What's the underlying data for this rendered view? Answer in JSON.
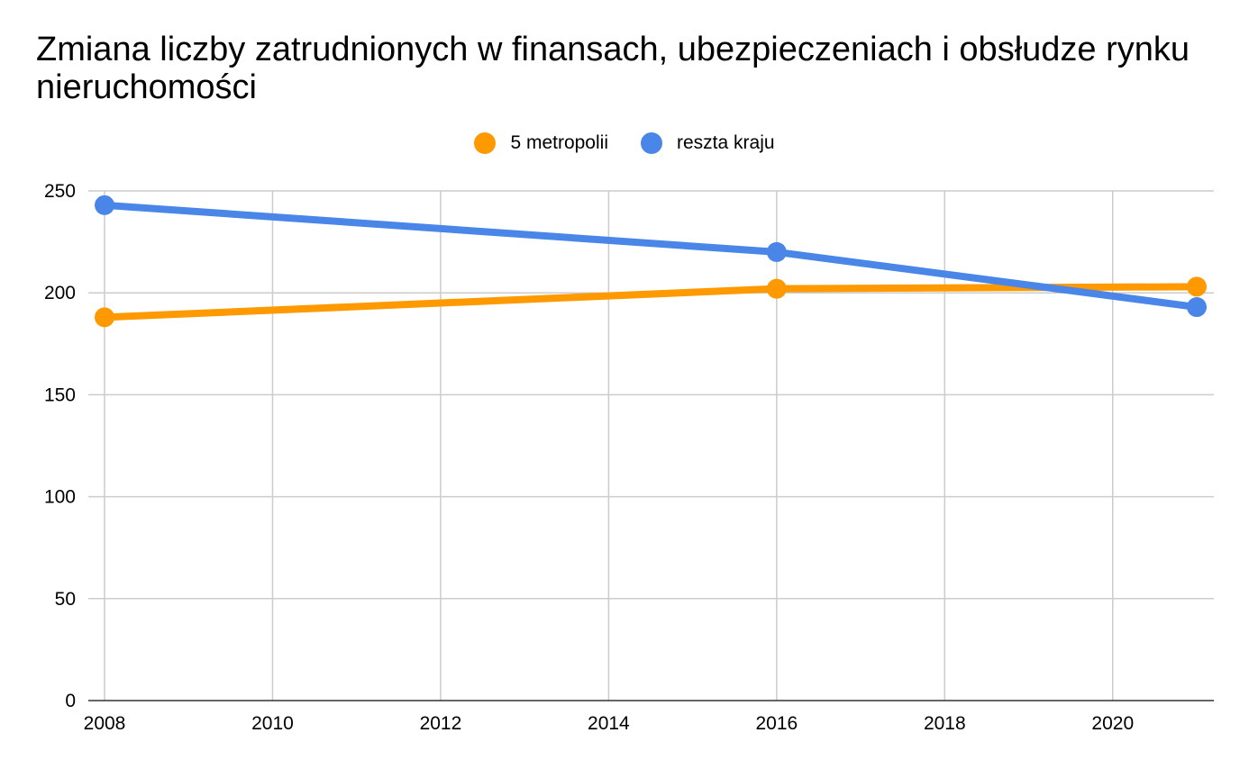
{
  "chart_data": {
    "type": "line",
    "title": "Zmiana liczby zatrudnionych w finansach, ubezpieczeniach i obsłudze rynku nieruchomości",
    "xlabel": "",
    "ylabel": "",
    "xlim": [
      2008,
      2021
    ],
    "ylim": [
      0,
      250
    ],
    "xticks": [
      "2008",
      "2010",
      "2012",
      "2014",
      "2016",
      "2018",
      "2020"
    ],
    "yticks": [
      "0",
      "50",
      "100",
      "150",
      "200",
      "250"
    ],
    "grid": true,
    "legend_position": "top",
    "series": [
      {
        "name": "5 metropolii",
        "color": "#FF9900",
        "x": [
          2008,
          2016,
          2021
        ],
        "y": [
          188,
          202,
          203
        ]
      },
      {
        "name": "reszta kraju",
        "color": "#4A86E8",
        "x": [
          2008,
          2016,
          2021
        ],
        "y": [
          243,
          220,
          193
        ]
      }
    ]
  }
}
